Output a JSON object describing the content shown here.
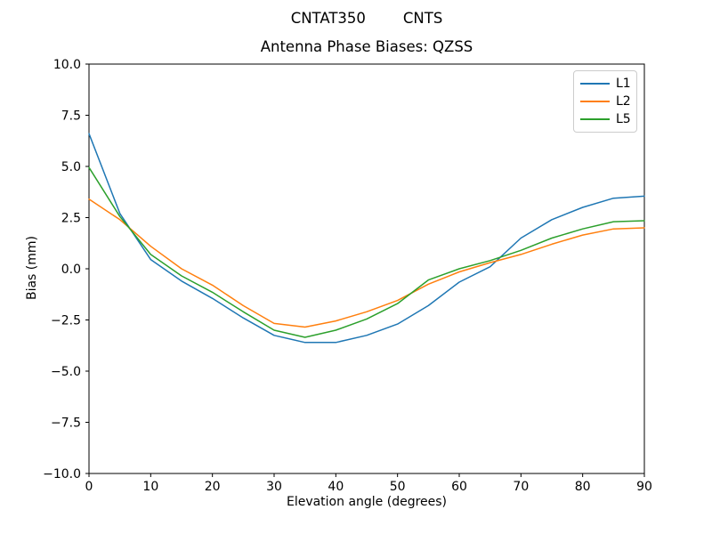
{
  "figure": {
    "background": "#ffffff",
    "axis_color": "#000000",
    "legend_border_color": "#cccccc"
  },
  "chart_data": {
    "type": "line",
    "suptitle": "CNTAT350        CNTS",
    "title": "Antenna Phase Biases: QZSS",
    "xlabel": "Elevation angle (degrees)",
    "ylabel": "Bias (mm)",
    "xlim": [
      0,
      90
    ],
    "ylim": [
      -10,
      10
    ],
    "xticks": [
      0,
      10,
      20,
      30,
      40,
      50,
      60,
      70,
      80,
      90
    ],
    "xtick_labels": [
      "0",
      "10",
      "20",
      "30",
      "40",
      "50",
      "60",
      "70",
      "80",
      "90"
    ],
    "yticks": [
      10,
      7.5,
      5,
      2.5,
      0,
      -2.5,
      -5,
      -7.5,
      -10
    ],
    "ytick_labels": [
      "10.0",
      "7.5",
      "5.0",
      "2.5",
      "0.0",
      "−2.5",
      "−5.0",
      "−7.5",
      "−10.0"
    ],
    "grid": false,
    "legend": {
      "position": "upper right",
      "entries": [
        "L1",
        "L2",
        "L5"
      ]
    },
    "x": [
      0,
      5,
      10,
      15,
      20,
      25,
      30,
      35,
      40,
      45,
      50,
      55,
      60,
      65,
      70,
      75,
      80,
      85,
      90
    ],
    "series": [
      {
        "name": "L1",
        "color": "#1f77b4",
        "values": [
          6.6,
          2.7,
          0.45,
          -0.6,
          -1.45,
          -2.4,
          -3.25,
          -3.6,
          -3.6,
          -3.25,
          -2.7,
          -1.8,
          -0.65,
          0.1,
          1.5,
          2.4,
          3.0,
          3.45,
          3.55
        ]
      },
      {
        "name": "L2",
        "color": "#ff7f0e",
        "values": [
          3.4,
          2.4,
          1.1,
          0.0,
          -0.8,
          -1.8,
          -2.67,
          -2.85,
          -2.55,
          -2.1,
          -1.55,
          -0.75,
          -0.15,
          0.3,
          0.7,
          1.2,
          1.65,
          1.95,
          2.0
        ]
      },
      {
        "name": "L5",
        "color": "#2ca02c",
        "values": [
          4.95,
          2.55,
          0.7,
          -0.35,
          -1.15,
          -2.1,
          -3.0,
          -3.35,
          -3.0,
          -2.45,
          -1.7,
          -0.55,
          0.0,
          0.4,
          0.9,
          1.5,
          1.95,
          2.3,
          2.35
        ]
      }
    ]
  }
}
